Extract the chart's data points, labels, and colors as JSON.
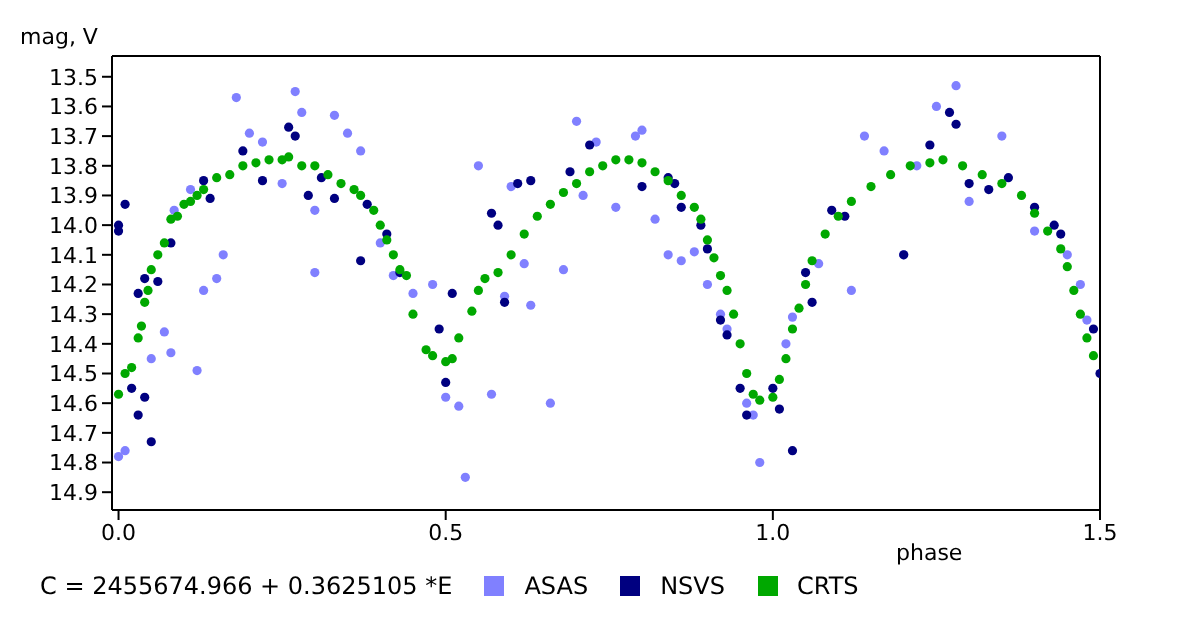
{
  "chart_data": {
    "type": "scatter",
    "xlabel": "phase",
    "ylabel": "mag, V",
    "annotations": [
      "C = 2455674.966 + 0.3625105 *E"
    ],
    "xlim": [
      -0.01,
      1.5
    ],
    "xticks": [
      {
        "value": 0,
        "label": "0.0"
      },
      {
        "value": 0.5,
        "label": "0.5"
      },
      {
        "value": 1,
        "label": "1.0"
      },
      {
        "value": 1.5,
        "label": "1.5"
      }
    ],
    "ylim": [
      14.96,
      13.43
    ],
    "yticks": [
      13.5,
      13.6,
      13.7,
      13.8,
      13.9,
      {
        "value": 14,
        "label": "14.0"
      },
      14.1,
      14.2,
      14.3,
      14.4,
      14.5,
      14.6,
      14.7,
      14.8,
      14.9
    ],
    "grid": false,
    "legend": "bottom",
    "marker": "circle",
    "series": [
      {
        "name": "ASAS",
        "color": "#8080ff",
        "x": [
          0.0,
          0.01,
          0.05,
          0.07,
          0.08,
          0.12,
          0.15,
          0.13,
          0.085,
          0.11,
          0.16,
          0.18,
          0.2,
          0.22,
          0.25,
          0.27,
          0.28,
          0.3,
          0.3,
          0.33,
          0.35,
          0.37,
          0.4,
          0.42,
          0.45,
          0.48,
          0.5,
          0.52,
          0.53,
          0.57,
          0.59,
          0.62,
          0.63,
          0.66,
          0.68,
          0.7,
          0.71,
          0.73,
          0.76,
          0.79,
          0.8,
          0.82,
          0.84,
          0.86,
          0.88,
          0.9,
          0.92,
          0.93,
          0.96,
          0.97,
          0.98,
          1.02,
          1.03,
          1.07,
          1.12,
          1.2,
          1.22,
          1.25,
          1.28,
          1.3,
          1.35,
          1.4,
          1.45,
          1.47,
          1.48,
          1.14,
          1.17,
          0.6,
          0.55
        ],
        "values": [
          14.78,
          14.76,
          14.45,
          14.36,
          14.43,
          14.49,
          14.18,
          14.22,
          13.95,
          13.88,
          14.1,
          13.57,
          13.69,
          13.72,
          13.86,
          13.55,
          13.62,
          13.95,
          14.16,
          13.63,
          13.69,
          13.75,
          14.06,
          14.17,
          14.23,
          14.2,
          14.58,
          14.61,
          14.85,
          14.57,
          14.24,
          14.13,
          14.27,
          14.6,
          14.15,
          13.65,
          13.9,
          13.72,
          13.94,
          13.7,
          13.68,
          13.98,
          14.1,
          14.12,
          14.09,
          14.2,
          14.3,
          14.35,
          14.6,
          14.64,
          14.8,
          14.4,
          14.31,
          14.13,
          14.22,
          14.1,
          13.8,
          13.6,
          13.53,
          13.92,
          13.7,
          14.02,
          14.1,
          14.2,
          14.32,
          13.7,
          13.75,
          13.87,
          13.8
        ]
      },
      {
        "name": "NSVS",
        "color": "#000080",
        "x": [
          0.0,
          0.0,
          0.01,
          0.02,
          0.03,
          0.04,
          0.05,
          0.03,
          0.04,
          0.06,
          0.08,
          0.13,
          0.14,
          0.19,
          0.22,
          0.26,
          0.27,
          0.29,
          0.31,
          0.33,
          0.38,
          0.41,
          0.43,
          0.37,
          0.49,
          0.5,
          0.51,
          0.59,
          0.57,
          0.58,
          0.61,
          0.63,
          0.69,
          0.72,
          0.8,
          0.84,
          0.85,
          0.86,
          0.89,
          0.9,
          0.92,
          0.93,
          0.95,
          0.96,
          1.0,
          1.01,
          1.03,
          1.05,
          1.06,
          1.09,
          1.11,
          1.2,
          1.24,
          1.27,
          1.28,
          1.3,
          1.33,
          1.36,
          1.4,
          1.43,
          1.44,
          1.49,
          1.5
        ],
        "values": [
          14.0,
          14.02,
          13.93,
          14.55,
          14.64,
          14.58,
          14.73,
          14.23,
          14.18,
          14.19,
          14.06,
          13.85,
          13.91,
          13.75,
          13.85,
          13.67,
          13.7,
          13.9,
          13.84,
          13.91,
          13.93,
          14.03,
          14.16,
          14.12,
          14.35,
          14.53,
          14.23,
          14.26,
          13.96,
          14.0,
          13.86,
          13.85,
          13.82,
          13.73,
          13.87,
          13.84,
          13.86,
          13.94,
          14.0,
          14.08,
          14.32,
          14.37,
          14.55,
          14.64,
          14.55,
          14.62,
          14.76,
          14.16,
          14.26,
          13.95,
          13.97,
          14.1,
          13.73,
          13.62,
          13.66,
          13.86,
          13.88,
          13.84,
          13.94,
          14.0,
          14.03,
          14.35,
          14.5
        ]
      },
      {
        "name": "CRTS",
        "color": "#00a800",
        "x": [
          0.0,
          0.01,
          0.02,
          0.03,
          0.035,
          0.04,
          0.045,
          0.05,
          0.06,
          0.07,
          0.08,
          0.09,
          0.1,
          0.11,
          0.12,
          0.13,
          0.15,
          0.17,
          0.19,
          0.21,
          0.23,
          0.25,
          0.26,
          0.28,
          0.3,
          0.32,
          0.34,
          0.36,
          0.37,
          0.39,
          0.4,
          0.41,
          0.42,
          0.43,
          0.44,
          0.45,
          0.47,
          0.48,
          0.5,
          0.51,
          0.52,
          0.54,
          0.55,
          0.56,
          0.58,
          0.6,
          0.62,
          0.64,
          0.66,
          0.68,
          0.7,
          0.72,
          0.74,
          0.76,
          0.78,
          0.8,
          0.82,
          0.84,
          0.86,
          0.88,
          0.89,
          0.9,
          0.91,
          0.92,
          0.93,
          0.94,
          0.95,
          0.96,
          0.97,
          0.98,
          1.0,
          1.01,
          1.02,
          1.03,
          1.04,
          1.05,
          1.06,
          1.08,
          1.1,
          1.12,
          1.15,
          1.18,
          1.21,
          1.24,
          1.26,
          1.29,
          1.32,
          1.35,
          1.38,
          1.4,
          1.42,
          1.44,
          1.45,
          1.46,
          1.47,
          1.48,
          1.49
        ],
        "values": [
          14.57,
          14.5,
          14.48,
          14.38,
          14.34,
          14.26,
          14.22,
          14.15,
          14.1,
          14.06,
          13.98,
          13.97,
          13.93,
          13.92,
          13.9,
          13.88,
          13.84,
          13.83,
          13.8,
          13.79,
          13.78,
          13.78,
          13.77,
          13.8,
          13.8,
          13.83,
          13.86,
          13.88,
          13.9,
          13.95,
          14.0,
          14.05,
          14.1,
          14.15,
          14.17,
          14.3,
          14.42,
          14.44,
          14.46,
          14.45,
          14.38,
          14.29,
          14.22,
          14.18,
          14.16,
          14.1,
          14.03,
          13.97,
          13.93,
          13.89,
          13.86,
          13.82,
          13.8,
          13.78,
          13.78,
          13.79,
          13.82,
          13.85,
          13.9,
          13.94,
          13.98,
          14.05,
          14.11,
          14.17,
          14.22,
          14.3,
          14.4,
          14.5,
          14.57,
          14.59,
          14.58,
          14.52,
          14.45,
          14.35,
          14.28,
          14.2,
          14.12,
          14.03,
          13.97,
          13.92,
          13.87,
          13.83,
          13.8,
          13.79,
          13.78,
          13.8,
          13.83,
          13.86,
          13.9,
          13.96,
          14.02,
          14.08,
          14.14,
          14.22,
          14.3,
          14.38,
          14.44
        ]
      }
    ]
  }
}
